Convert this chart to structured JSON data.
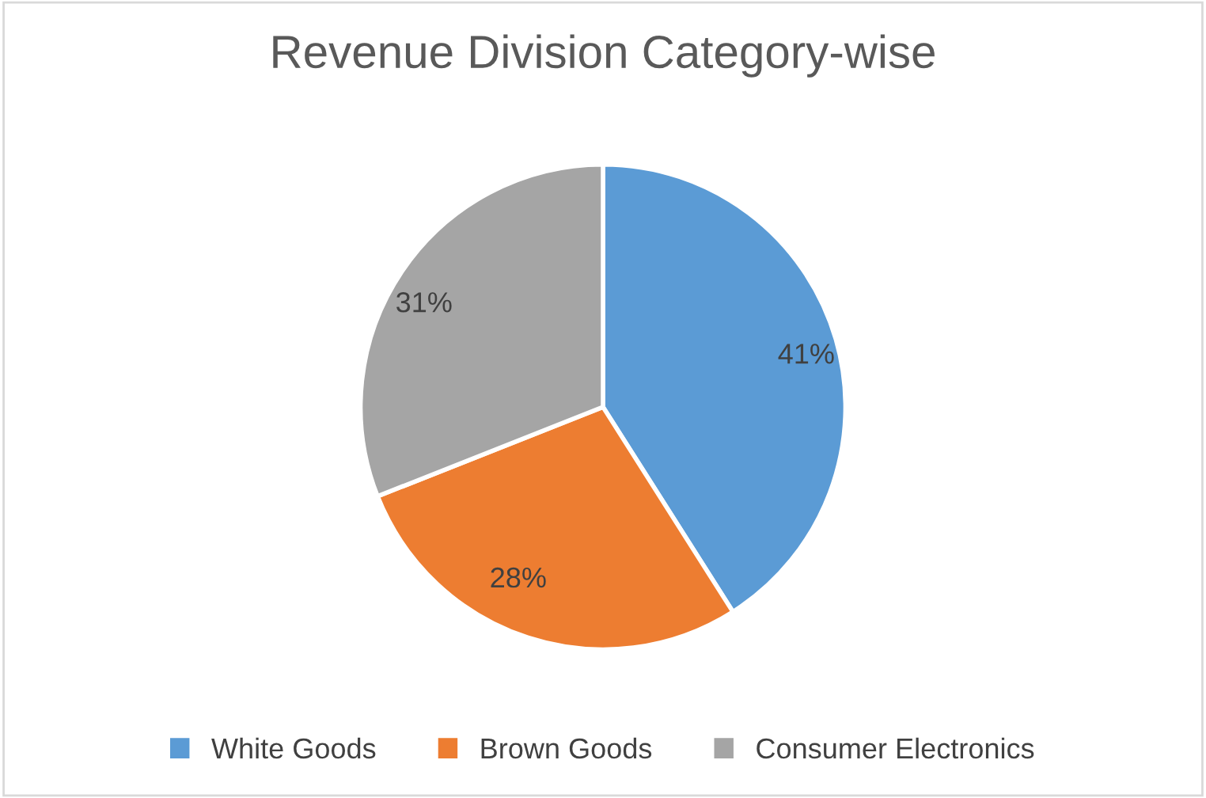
{
  "chart_data": {
    "type": "pie",
    "title": "Revenue Division Category-wise",
    "categories": [
      "White Goods",
      "Brown Goods",
      "Consumer Electronics"
    ],
    "values": [
      41,
      28,
      31
    ],
    "colors": [
      "#5b9bd5",
      "#ed7d31",
      "#a5a5a5"
    ],
    "value_labels": [
      "41%",
      "28%",
      "31%"
    ],
    "legend": "bottom"
  }
}
